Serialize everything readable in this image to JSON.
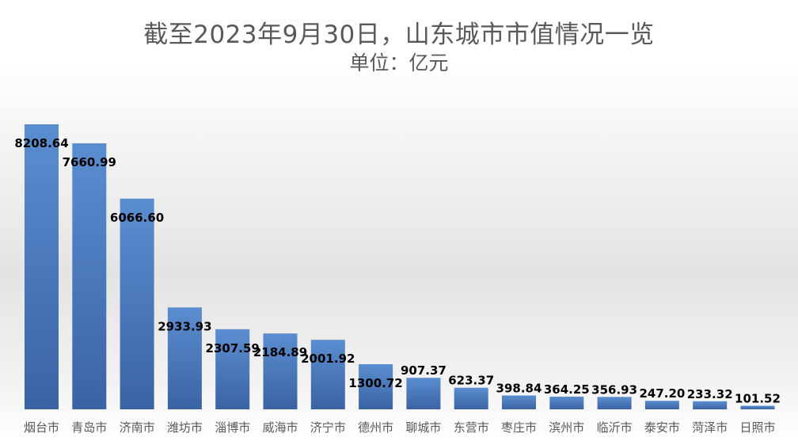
{
  "chart_data": {
    "type": "bar",
    "title": "截至2023年9月30日，山东城市市值情况一览",
    "subtitle": "单位：亿元",
    "categories": [
      "烟台市",
      "青岛市",
      "济南市",
      "潍坊市",
      "淄博市",
      "威海市",
      "济宁市",
      "德州市",
      "聊城市",
      "东营市",
      "枣庄市",
      "滨州市",
      "临沂市",
      "泰安市",
      "菏泽市",
      "日照市"
    ],
    "values": [
      8208.64,
      7660.99,
      6066.6,
      2933.93,
      2307.59,
      2184.89,
      2001.92,
      1300.72,
      907.37,
      623.37,
      398.84,
      364.25,
      356.93,
      247.2,
      233.32,
      101.52
    ],
    "value_labels": [
      "8208.64",
      "7660.99",
      "6066.60",
      "2933.93",
      "2307.59",
      "2184.89",
      "2001.92",
      "1300.72",
      "907.37",
      "623.37",
      "398.84",
      "364.25",
      "356.93",
      "247.20",
      "233.32",
      "101.52"
    ],
    "xlabel": "",
    "ylabel": "",
    "ylim": [
      0,
      8208.64
    ],
    "grid": false,
    "legend": "none",
    "bar_color_top": "#5a8ed0",
    "bar_color_bottom": "#3a63a4"
  }
}
